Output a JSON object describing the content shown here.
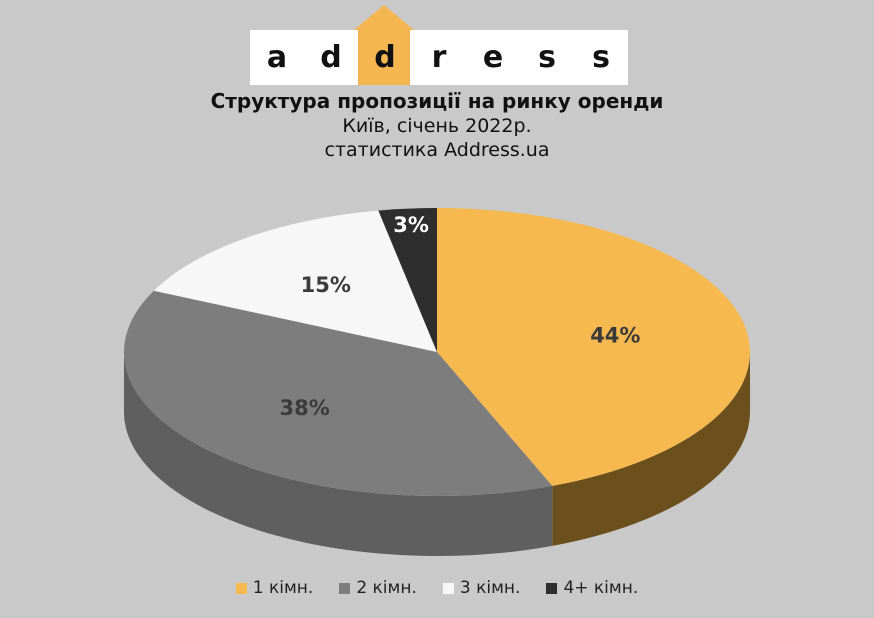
{
  "logo": {
    "letters": [
      "a",
      "d",
      "d",
      "r",
      "e",
      "s",
      "s"
    ],
    "accent_color": "#f4b651"
  },
  "header": {
    "title": "Структура пропозиції на ринку оренди",
    "subtitle_1": "Київ, січень 2022р.",
    "subtitle_2": "статистика Address.ua"
  },
  "chart_data": {
    "type": "pie",
    "style": "3d",
    "categories": [
      "1 кімн.",
      "2 кімн.",
      "3 кімн.",
      "4+ кімн."
    ],
    "values": [
      44,
      38,
      15,
      3
    ],
    "labels": [
      "44%",
      "38%",
      "15%",
      "3%"
    ],
    "colors": [
      "#f6b94f",
      "#7d7d7d",
      "#f7f7f7",
      "#2e2e2e"
    ],
    "side_colors": [
      "#6b4f1d",
      "#5f5f5f",
      "#dddddd",
      "#222222"
    ],
    "label_colors": [
      "#3b3b3b",
      "#3b3b3b",
      "#3b3b3b",
      "#ffffff"
    ],
    "legend_position": "bottom",
    "start_angle_deg": -90,
    "direction": "clockwise"
  }
}
